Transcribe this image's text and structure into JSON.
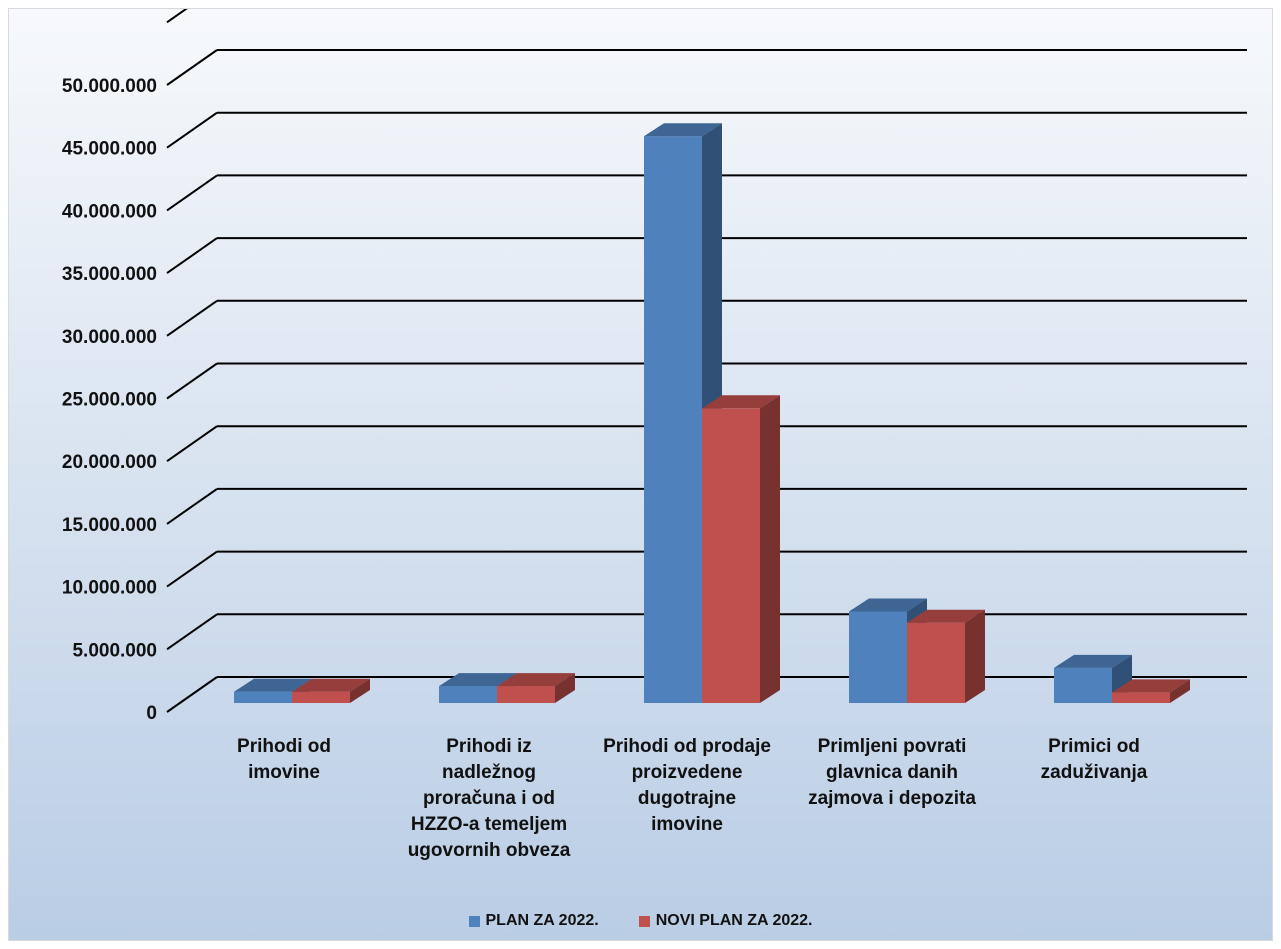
{
  "chart_data": {
    "type": "bar",
    "categories": [
      "Prihodi od imovine",
      "Prihodi iz nadležnog proračuna i od HZZO-a temeljem ugovornih obveza",
      "Prihodi od prodaje proizvedene dugotrajne imovine",
      "Primljeni povrati glavnica danih zajmova i depozita",
      "Primici od zaduživanja"
    ],
    "category_lines": [
      [
        "Prihodi od",
        "imovine"
      ],
      [
        "Prihodi iz",
        "nadležnog",
        "proračuna i od",
        "HZZO-a temeljem",
        "ugovornih obveza"
      ],
      [
        "Prihodi od prodaje",
        "proizvedene",
        "dugotrajne",
        "imovine"
      ],
      [
        "Primljeni povrati",
        "glavnica danih",
        "zajmova i depozita"
      ],
      [
        "Primici od",
        "zaduživanja"
      ]
    ],
    "series": [
      {
        "name": "PLAN ZA 2022.",
        "color": "#4f81bd",
        "values": [
          900000,
          1350000,
          45200000,
          7300000,
          2800000
        ]
      },
      {
        "name": "NOVI PLAN ZA 2022.",
        "color": "#c0504d",
        "values": [
          900000,
          1350000,
          23500000,
          6400000,
          850000
        ]
      }
    ],
    "y_ticks": [
      "0",
      "5.000.000",
      "10.000.000",
      "15.000.000",
      "20.000.000",
      "25.000.000",
      "30.000.000",
      "35.000.000",
      "40.000.000",
      "45.000.000",
      "50.000.000"
    ],
    "ylim": [
      0,
      52500000
    ],
    "grid": true,
    "legend_position": "bottom",
    "title": "",
    "xlabel": "",
    "ylabel": ""
  }
}
